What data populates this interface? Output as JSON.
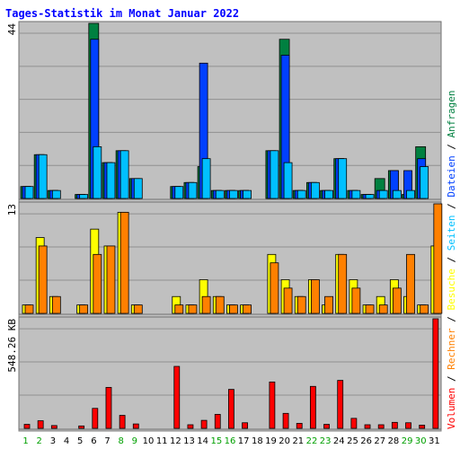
{
  "chart_data": {
    "type": "bar",
    "title": "Tages-Statistik im Monat Januar 2022",
    "categories": [
      "1",
      "2",
      "3",
      "4",
      "5",
      "6",
      "7",
      "8",
      "9",
      "10",
      "11",
      "12",
      "13",
      "14",
      "15",
      "16",
      "17",
      "18",
      "19",
      "20",
      "21",
      "22",
      "23",
      "24",
      "25",
      "26",
      "27",
      "28",
      "29",
      "30",
      "31"
    ],
    "weekend_days": [
      "1",
      "2",
      "8",
      "9",
      "15",
      "16",
      "22",
      "23",
      "29",
      "30"
    ],
    "colors": {
      "anfragen": "#008040",
      "dateien": "#0040ff",
      "seiten": "#00c0ff",
      "besuche": "#ffff00",
      "rechner": "#ff8000",
      "volumen": "#ff0000",
      "title": "#0000ff",
      "background": "#c0c0c0",
      "weekday_label": "#000000",
      "weekend_label": "#00a000"
    },
    "panels": [
      {
        "axis_max_label": "44",
        "ylim": [
          0,
          44
        ],
        "series": [
          {
            "name": "Anfragen",
            "values": [
              3,
              11,
              2,
              0,
              1,
              44,
              9,
              12,
              5,
              0,
              0,
              3,
              4,
              8,
              2,
              2,
              2,
              0,
              12,
              40,
              2,
              4,
              2,
              10,
              2,
              1,
              5,
              7,
              1,
              13,
              0
            ]
          },
          {
            "name": "Dateien",
            "values": [
              3,
              11,
              2,
              0,
              1,
              40,
              9,
              12,
              5,
              0,
              0,
              3,
              4,
              34,
              2,
              2,
              2,
              0,
              12,
              36,
              2,
              4,
              2,
              10,
              2,
              1,
              2,
              7,
              7,
              10,
              0
            ]
          },
          {
            "name": "Seiten",
            "values": [
              3,
              11,
              2,
              0,
              1,
              13,
              9,
              12,
              5,
              0,
              0,
              3,
              4,
              10,
              2,
              2,
              2,
              0,
              12,
              9,
              2,
              4,
              2,
              10,
              2,
              1,
              2,
              2,
              2,
              8,
              0
            ]
          }
        ]
      },
      {
        "axis_max_label": "13",
        "ylim": [
          0,
          13
        ],
        "series": [
          {
            "name": "Besuche",
            "values": [
              1,
              9,
              2,
              0,
              1,
              10,
              8,
              12,
              1,
              0,
              0,
              2,
              1,
              4,
              2,
              1,
              1,
              0,
              7,
              4,
              2,
              4,
              1,
              7,
              4,
              1,
              2,
              4,
              2,
              1,
              8
            ]
          },
          {
            "name": "Rechner",
            "values": [
              1,
              8,
              2,
              0,
              1,
              7,
              8,
              12,
              1,
              0,
              0,
              1,
              1,
              2,
              2,
              1,
              1,
              0,
              6,
              3,
              2,
              4,
              2,
              7,
              3,
              1,
              1,
              3,
              7,
              1,
              13
            ]
          }
        ]
      },
      {
        "axis_max_label": "548.26 KB",
        "ylim": [
          0,
          548.26
        ],
        "series": [
          {
            "name": "Volumen",
            "values": [
              20,
              38,
              14,
              0,
              12,
              100,
              205,
              65,
              22,
              0,
              0,
              310,
              18,
              40,
              70,
              195,
              28,
              0,
              232,
              75,
              25,
              210,
              20,
              240,
              50,
              18,
              18,
              30,
              28,
              16,
              548.26
            ]
          }
        ]
      }
    ],
    "legend": [
      "Anfragen",
      "Dateien",
      "Seiten",
      "Besuche",
      "Rechner",
      "Volumen"
    ],
    "legend_separator": " / "
  }
}
